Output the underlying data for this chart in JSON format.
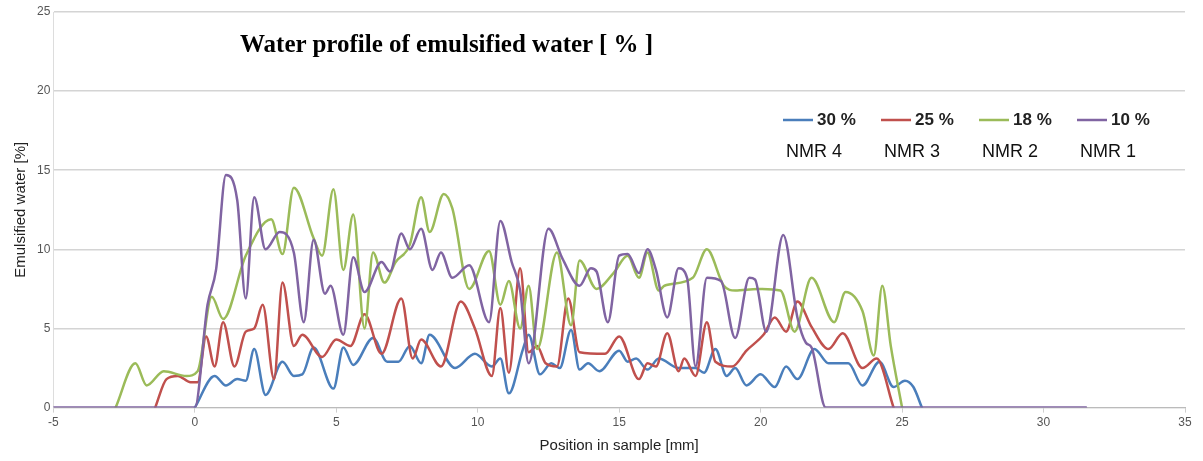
{
  "chart_data": {
    "type": "line",
    "title": "Water profile of emulsified water [ % ]",
    "xlabel": "Position in sample [mm]",
    "ylabel": "Emulsified water [%]",
    "xlim": [
      -5,
      35
    ],
    "xticks": [
      -5,
      0,
      5,
      10,
      15,
      20,
      25,
      30,
      35
    ],
    "ylim": [
      0,
      25
    ],
    "yticks": [
      0,
      5,
      10,
      15,
      20,
      25
    ],
    "grid": "y",
    "legend": "top right",
    "marker": "none",
    "line_style": "solid",
    "annotations": [
      "NMR 4",
      "NMR 3",
      "NMR 2",
      "NMR 1"
    ],
    "series": [
      {
        "name": "30 %",
        "color": "#4a7ebb",
        "x": [
          0,
          0.7,
          1.1,
          1.5,
          1.8,
          2.1,
          2.5,
          3.1,
          3.5,
          3.8,
          4.2,
          4.9,
          5.25,
          5.6,
          6.3,
          6.8,
          7.2,
          7.6,
          8.0,
          8.3,
          9.2,
          9.9,
          10.5,
          10.8,
          11.1,
          11.6,
          11.8,
          12.2,
          12.6,
          12.9,
          13.3,
          13.6,
          13.9,
          14.3,
          15.0,
          15.3,
          15.6,
          16.0,
          16.4,
          17.1,
          17.7,
          18.0,
          18.4,
          18.8,
          19.1,
          19.5,
          20.0,
          20.5,
          20.9,
          21.3,
          21.9,
          22.4,
          23.1,
          23.6,
          24.2,
          24.7,
          25.1,
          25.4,
          25.7
        ],
        "values": [
          0,
          2.0,
          1.4,
          1.8,
          1.7,
          3.7,
          0.8,
          2.9,
          2.0,
          2.1,
          3.8,
          1.2,
          3.8,
          2.7,
          4.4,
          2.9,
          2.9,
          3.9,
          2.8,
          4.6,
          2.5,
          3.4,
          2.6,
          3.1,
          0.9,
          3.7,
          4.6,
          2.1,
          2.8,
          2.5,
          4.9,
          2.4,
          2.8,
          2.3,
          3.6,
          2.9,
          3.1,
          2.4,
          3.1,
          2.5,
          2.5,
          2.2,
          3.7,
          2.0,
          2.5,
          1.4,
          2.1,
          1.3,
          2.6,
          1.8,
          3.7,
          2.8,
          2.8,
          1.4,
          2.9,
          1.3,
          1.7,
          1.3,
          0
        ]
      },
      {
        "name": "25 %",
        "color": "#c0504d",
        "x": [
          -1.4,
          -1.0,
          -0.6,
          -0.15,
          0.1,
          0.4,
          0.7,
          1.0,
          1.4,
          1.8,
          2.1,
          2.4,
          2.8,
          3.1,
          3.5,
          3.8,
          4.5,
          5.0,
          5.5,
          6.0,
          6.6,
          7.3,
          7.7,
          8.0,
          8.7,
          9.4,
          9.9,
          10.5,
          10.8,
          11.1,
          11.5,
          11.8,
          12.1,
          12.4,
          12.8,
          13.2,
          13.6,
          14.5,
          15.0,
          15.7,
          16.0,
          16.3,
          16.7,
          17.1,
          17.3,
          17.7,
          18.1,
          18.4,
          19.0,
          19.5,
          20.1,
          20.5,
          20.9,
          21.3,
          21.8,
          22.4,
          22.9,
          23.6,
          24.1,
          24.7
        ],
        "values": [
          0,
          1.8,
          2.0,
          1.6,
          1.6,
          4.5,
          2.6,
          5.4,
          2.6,
          4.8,
          5.0,
          6.5,
          1.8,
          7.9,
          3.9,
          4.6,
          3.2,
          4.3,
          3.9,
          5.9,
          3.4,
          6.9,
          3.1,
          4.3,
          2.6,
          6.7,
          5.0,
          2.0,
          6.3,
          2.2,
          8.8,
          3.5,
          3.9,
          2.8,
          2.6,
          6.9,
          3.5,
          3.4,
          4.5,
          1.8,
          2.8,
          2.6,
          4.7,
          2.3,
          3.1,
          2.0,
          5.4,
          2.9,
          2.6,
          3.6,
          4.6,
          5.7,
          4.8,
          6.7,
          5.1,
          3.7,
          4.7,
          2.5,
          3.1,
          0
        ]
      },
      {
        "name": "18 %",
        "color": "#9bbb59",
        "x": [
          -2.8,
          -2.1,
          -1.7,
          -1.1,
          -0.3,
          0.1,
          0.6,
          1.0,
          1.8,
          2.7,
          3.1,
          3.5,
          4.2,
          4.5,
          4.9,
          5.25,
          5.6,
          6.0,
          6.3,
          6.7,
          7.1,
          7.6,
          8.0,
          8.3,
          8.8,
          9.1,
          9.7,
          10.4,
          10.8,
          11.1,
          11.5,
          11.8,
          12.1,
          12.8,
          13.3,
          13.6,
          14.2,
          14.8,
          15.3,
          15.7,
          16.0,
          16.4,
          16.6,
          17.6,
          18.1,
          18.7,
          19.1,
          19.9,
          20.7,
          21.2,
          21.8,
          22.6,
          23.0,
          23.6,
          24.0,
          24.3,
          24.6,
          25.0
        ],
        "values": [
          0,
          2.8,
          1.4,
          2.3,
          2.0,
          2.3,
          7.0,
          5.6,
          9.6,
          11.9,
          9.7,
          13.9,
          10.7,
          9.6,
          13.8,
          8.7,
          12.2,
          5.0,
          9.8,
          7.9,
          9.2,
          10.3,
          13.3,
          11.1,
          13.5,
          12.6,
          7.5,
          9.9,
          6.5,
          8.0,
          5.0,
          7.7,
          3.7,
          9.8,
          5.2,
          9.3,
          7.5,
          8.5,
          9.6,
          8.2,
          9.8,
          7.4,
          7.7,
          8.2,
          10.0,
          7.7,
          7.4,
          7.5,
          7.4,
          4.8,
          8.2,
          5.4,
          7.3,
          6.1,
          3.3,
          7.7,
          3.9,
          0
        ]
      },
      {
        "name": "10 %",
        "color": "#8064a2",
        "x": [
          -5,
          0,
          0.45,
          0.75,
          1.1,
          1.5,
          1.8,
          2.1,
          2.5,
          3.0,
          3.5,
          3.85,
          4.2,
          4.6,
          4.8,
          5.25,
          5.6,
          6.0,
          6.6,
          6.9,
          7.3,
          7.6,
          8.0,
          8.4,
          8.7,
          9.1,
          9.7,
          10.4,
          10.8,
          11.2,
          11.5,
          11.8,
          12.5,
          13.0,
          13.6,
          14.0,
          14.2,
          14.6,
          15.0,
          15.3,
          15.7,
          16.0,
          16.3,
          16.7,
          17.1,
          17.4,
          17.7,
          18.1,
          18.6,
          19.1,
          19.6,
          19.8,
          20.2,
          20.8,
          21.3,
          21.6,
          21.8,
          22.3,
          31.5
        ],
        "values": [
          0,
          0,
          6.5,
          8.7,
          14.7,
          13.1,
          6.9,
          13.3,
          10.0,
          11.1,
          9.8,
          5.4,
          10.6,
          7.2,
          7.7,
          4.6,
          9.5,
          7.3,
          9.2,
          8.6,
          11.0,
          10.0,
          11.3,
          8.7,
          9.8,
          8.2,
          9.0,
          5.4,
          11.8,
          9.2,
          7.4,
          2.8,
          11.3,
          9.4,
          7.7,
          8.8,
          8.6,
          5.4,
          9.6,
          9.7,
          8.5,
          10.0,
          8.7,
          5.7,
          8.8,
          8.2,
          2.6,
          8.2,
          8.0,
          4.4,
          8.2,
          8.1,
          4.8,
          10.9,
          5.7,
          4.1,
          3.8,
          0,
          0
        ]
      }
    ]
  }
}
